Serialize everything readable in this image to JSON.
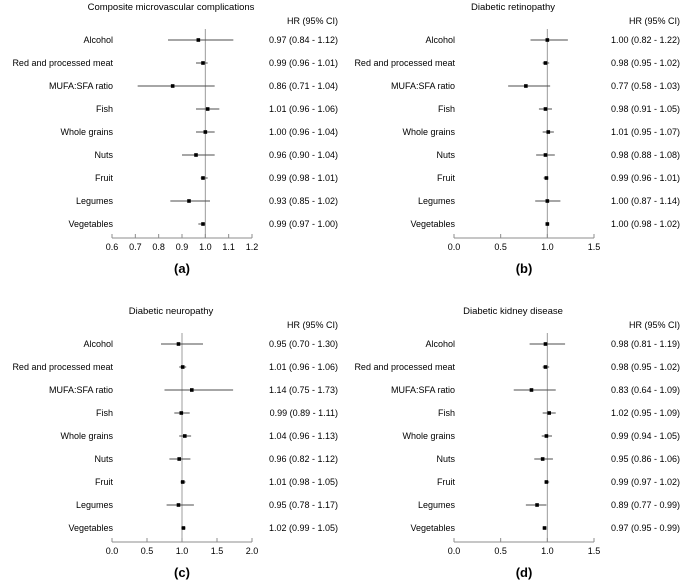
{
  "figure": {
    "description": "Forest plots of hazard ratios (95% CI) for dietary factors and diabetic microvascular complications",
    "colors": {
      "background": "#ffffff",
      "text": "#000000",
      "ci_line": "#4d4d4d",
      "marker": "#000000",
      "axis": "#8c8c8c",
      "ref_line": "#9c9c9c"
    }
  },
  "chart_data": [
    {
      "type": "forest",
      "panel_label": "(a)",
      "title": "Composite microvascular complications",
      "column_header": "HR (95% CI)",
      "ref_line": 1.0,
      "xlim": [
        0.6,
        1.2
      ],
      "xticks": [
        "0.6",
        "0.7",
        "0.8",
        "0.9",
        "1.0",
        "1.1",
        "1.2"
      ],
      "rows": [
        {
          "category": "Alcohol",
          "hr": 0.97,
          "ci_low": 0.84,
          "ci_high": 1.12,
          "label": "0.97 (0.84 - 1.12)"
        },
        {
          "category": "Red and processed meat",
          "hr": 0.99,
          "ci_low": 0.96,
          "ci_high": 1.01,
          "label": "0.99 (0.96 - 1.01)"
        },
        {
          "category": "MUFA:SFA ratio",
          "hr": 0.86,
          "ci_low": 0.71,
          "ci_high": 1.04,
          "label": "0.86 (0.71 - 1.04)"
        },
        {
          "category": "Fish",
          "hr": 1.01,
          "ci_low": 0.96,
          "ci_high": 1.06,
          "label": "1.01 (0.96 - 1.06)"
        },
        {
          "category": "Whole grains",
          "hr": 1.0,
          "ci_low": 0.96,
          "ci_high": 1.04,
          "label": "1.00 (0.96 - 1.04)"
        },
        {
          "category": "Nuts",
          "hr": 0.96,
          "ci_low": 0.9,
          "ci_high": 1.04,
          "label": "0.96 (0.90 - 1.04)"
        },
        {
          "category": "Fruit",
          "hr": 0.99,
          "ci_low": 0.98,
          "ci_high": 1.01,
          "label": "0.99 (0.98 - 1.01)"
        },
        {
          "category": "Legumes",
          "hr": 0.93,
          "ci_low": 0.85,
          "ci_high": 1.02,
          "label": "0.93 (0.85 - 1.02)"
        },
        {
          "category": "Vegetables",
          "hr": 0.99,
          "ci_low": 0.97,
          "ci_high": 1.0,
          "label": "0.99 (0.97 - 1.00)"
        }
      ]
    },
    {
      "type": "forest",
      "panel_label": "(b)",
      "title": "Diabetic retinopathy",
      "column_header": "HR (95% CI)",
      "ref_line": 1.0,
      "xlim": [
        0.0,
        1.5
      ],
      "xticks": [
        "0.0",
        "0.5",
        "1.0",
        "1.5"
      ],
      "rows": [
        {
          "category": "Alcohol",
          "hr": 1.0,
          "ci_low": 0.82,
          "ci_high": 1.22,
          "label": "1.00 (0.82 - 1.22)"
        },
        {
          "category": "Red and processed meat",
          "hr": 0.98,
          "ci_low": 0.95,
          "ci_high": 1.02,
          "label": "0.98 (0.95 - 1.02)"
        },
        {
          "category": "MUFA:SFA ratio",
          "hr": 0.77,
          "ci_low": 0.58,
          "ci_high": 1.03,
          "label": "0.77 (0.58 - 1.03)"
        },
        {
          "category": "Fish",
          "hr": 0.98,
          "ci_low": 0.91,
          "ci_high": 1.05,
          "label": "0.98 (0.91 - 1.05)"
        },
        {
          "category": "Whole grains",
          "hr": 1.01,
          "ci_low": 0.95,
          "ci_high": 1.07,
          "label": "1.01 (0.95 - 1.07)"
        },
        {
          "category": "Nuts",
          "hr": 0.98,
          "ci_low": 0.88,
          "ci_high": 1.08,
          "label": "0.98 (0.88 - 1.08)"
        },
        {
          "category": "Fruit",
          "hr": 0.99,
          "ci_low": 0.96,
          "ci_high": 1.01,
          "label": "0.99 (0.96 - 1.01)"
        },
        {
          "category": "Legumes",
          "hr": 1.0,
          "ci_low": 0.87,
          "ci_high": 1.14,
          "label": "1.00 (0.87 - 1.14)"
        },
        {
          "category": "Vegetables",
          "hr": 1.0,
          "ci_low": 0.98,
          "ci_high": 1.02,
          "label": "1.00 (0.98 - 1.02)"
        }
      ]
    },
    {
      "type": "forest",
      "panel_label": "(c)",
      "title": "Diabetic neuropathy",
      "column_header": "HR (95% CI)",
      "ref_line": 1.0,
      "xlim": [
        0.0,
        2.0
      ],
      "xticks": [
        "0.0",
        "0.5",
        "1.0",
        "1.5",
        "2.0"
      ],
      "rows": [
        {
          "category": "Alcohol",
          "hr": 0.95,
          "ci_low": 0.7,
          "ci_high": 1.3,
          "label": "0.95 (0.70 - 1.30)"
        },
        {
          "category": "Red and processed meat",
          "hr": 1.01,
          "ci_low": 0.96,
          "ci_high": 1.06,
          "label": "1.01 (0.96 - 1.06)"
        },
        {
          "category": "MUFA:SFA ratio",
          "hr": 1.14,
          "ci_low": 0.75,
          "ci_high": 1.73,
          "label": "1.14 (0.75 - 1.73)"
        },
        {
          "category": "Fish",
          "hr": 0.99,
          "ci_low": 0.89,
          "ci_high": 1.11,
          "label": "0.99 (0.89 - 1.11)"
        },
        {
          "category": "Whole grains",
          "hr": 1.04,
          "ci_low": 0.96,
          "ci_high": 1.13,
          "label": "1.04 (0.96 - 1.13)"
        },
        {
          "category": "Nuts",
          "hr": 0.96,
          "ci_low": 0.82,
          "ci_high": 1.12,
          "label": "0.96 (0.82 - 1.12)"
        },
        {
          "category": "Fruit",
          "hr": 1.01,
          "ci_low": 0.98,
          "ci_high": 1.05,
          "label": "1.01 (0.98 - 1.05)"
        },
        {
          "category": "Legumes",
          "hr": 0.95,
          "ci_low": 0.78,
          "ci_high": 1.17,
          "label": "0.95 (0.78 - 1.17)"
        },
        {
          "category": "Vegetables",
          "hr": 1.02,
          "ci_low": 0.99,
          "ci_high": 1.05,
          "label": "1.02 (0.99 - 1.05)"
        }
      ]
    },
    {
      "type": "forest",
      "panel_label": "(d)",
      "title": "Diabetic kidney disease",
      "column_header": "HR (95% CI)",
      "ref_line": 1.0,
      "xlim": [
        0.0,
        1.5
      ],
      "xticks": [
        "0.0",
        "0.5",
        "1.0",
        "1.5"
      ],
      "rows": [
        {
          "category": "Alcohol",
          "hr": 0.98,
          "ci_low": 0.81,
          "ci_high": 1.19,
          "label": "0.98 (0.81 - 1.19)"
        },
        {
          "category": "Red and processed meat",
          "hr": 0.98,
          "ci_low": 0.95,
          "ci_high": 1.02,
          "label": "0.98 (0.95 - 1.02)"
        },
        {
          "category": "MUFA:SFA ratio",
          "hr": 0.83,
          "ci_low": 0.64,
          "ci_high": 1.09,
          "label": "0.83 (0.64 - 1.09)"
        },
        {
          "category": "Fish",
          "hr": 1.02,
          "ci_low": 0.95,
          "ci_high": 1.09,
          "label": "1.02 (0.95 - 1.09)"
        },
        {
          "category": "Whole grains",
          "hr": 0.99,
          "ci_low": 0.94,
          "ci_high": 1.05,
          "label": "0.99 (0.94 - 1.05)"
        },
        {
          "category": "Nuts",
          "hr": 0.95,
          "ci_low": 0.86,
          "ci_high": 1.06,
          "label": "0.95 (0.86 - 1.06)"
        },
        {
          "category": "Fruit",
          "hr": 0.99,
          "ci_low": 0.97,
          "ci_high": 1.02,
          "label": "0.99 (0.97 - 1.02)"
        },
        {
          "category": "Legumes",
          "hr": 0.89,
          "ci_low": 0.77,
          "ci_high": 0.99,
          "label": "0.89 (0.77 - 0.99)"
        },
        {
          "category": "Vegetables",
          "hr": 0.97,
          "ci_low": 0.95,
          "ci_high": 0.99,
          "label": "0.97 (0.95 - 0.99)"
        }
      ]
    }
  ]
}
